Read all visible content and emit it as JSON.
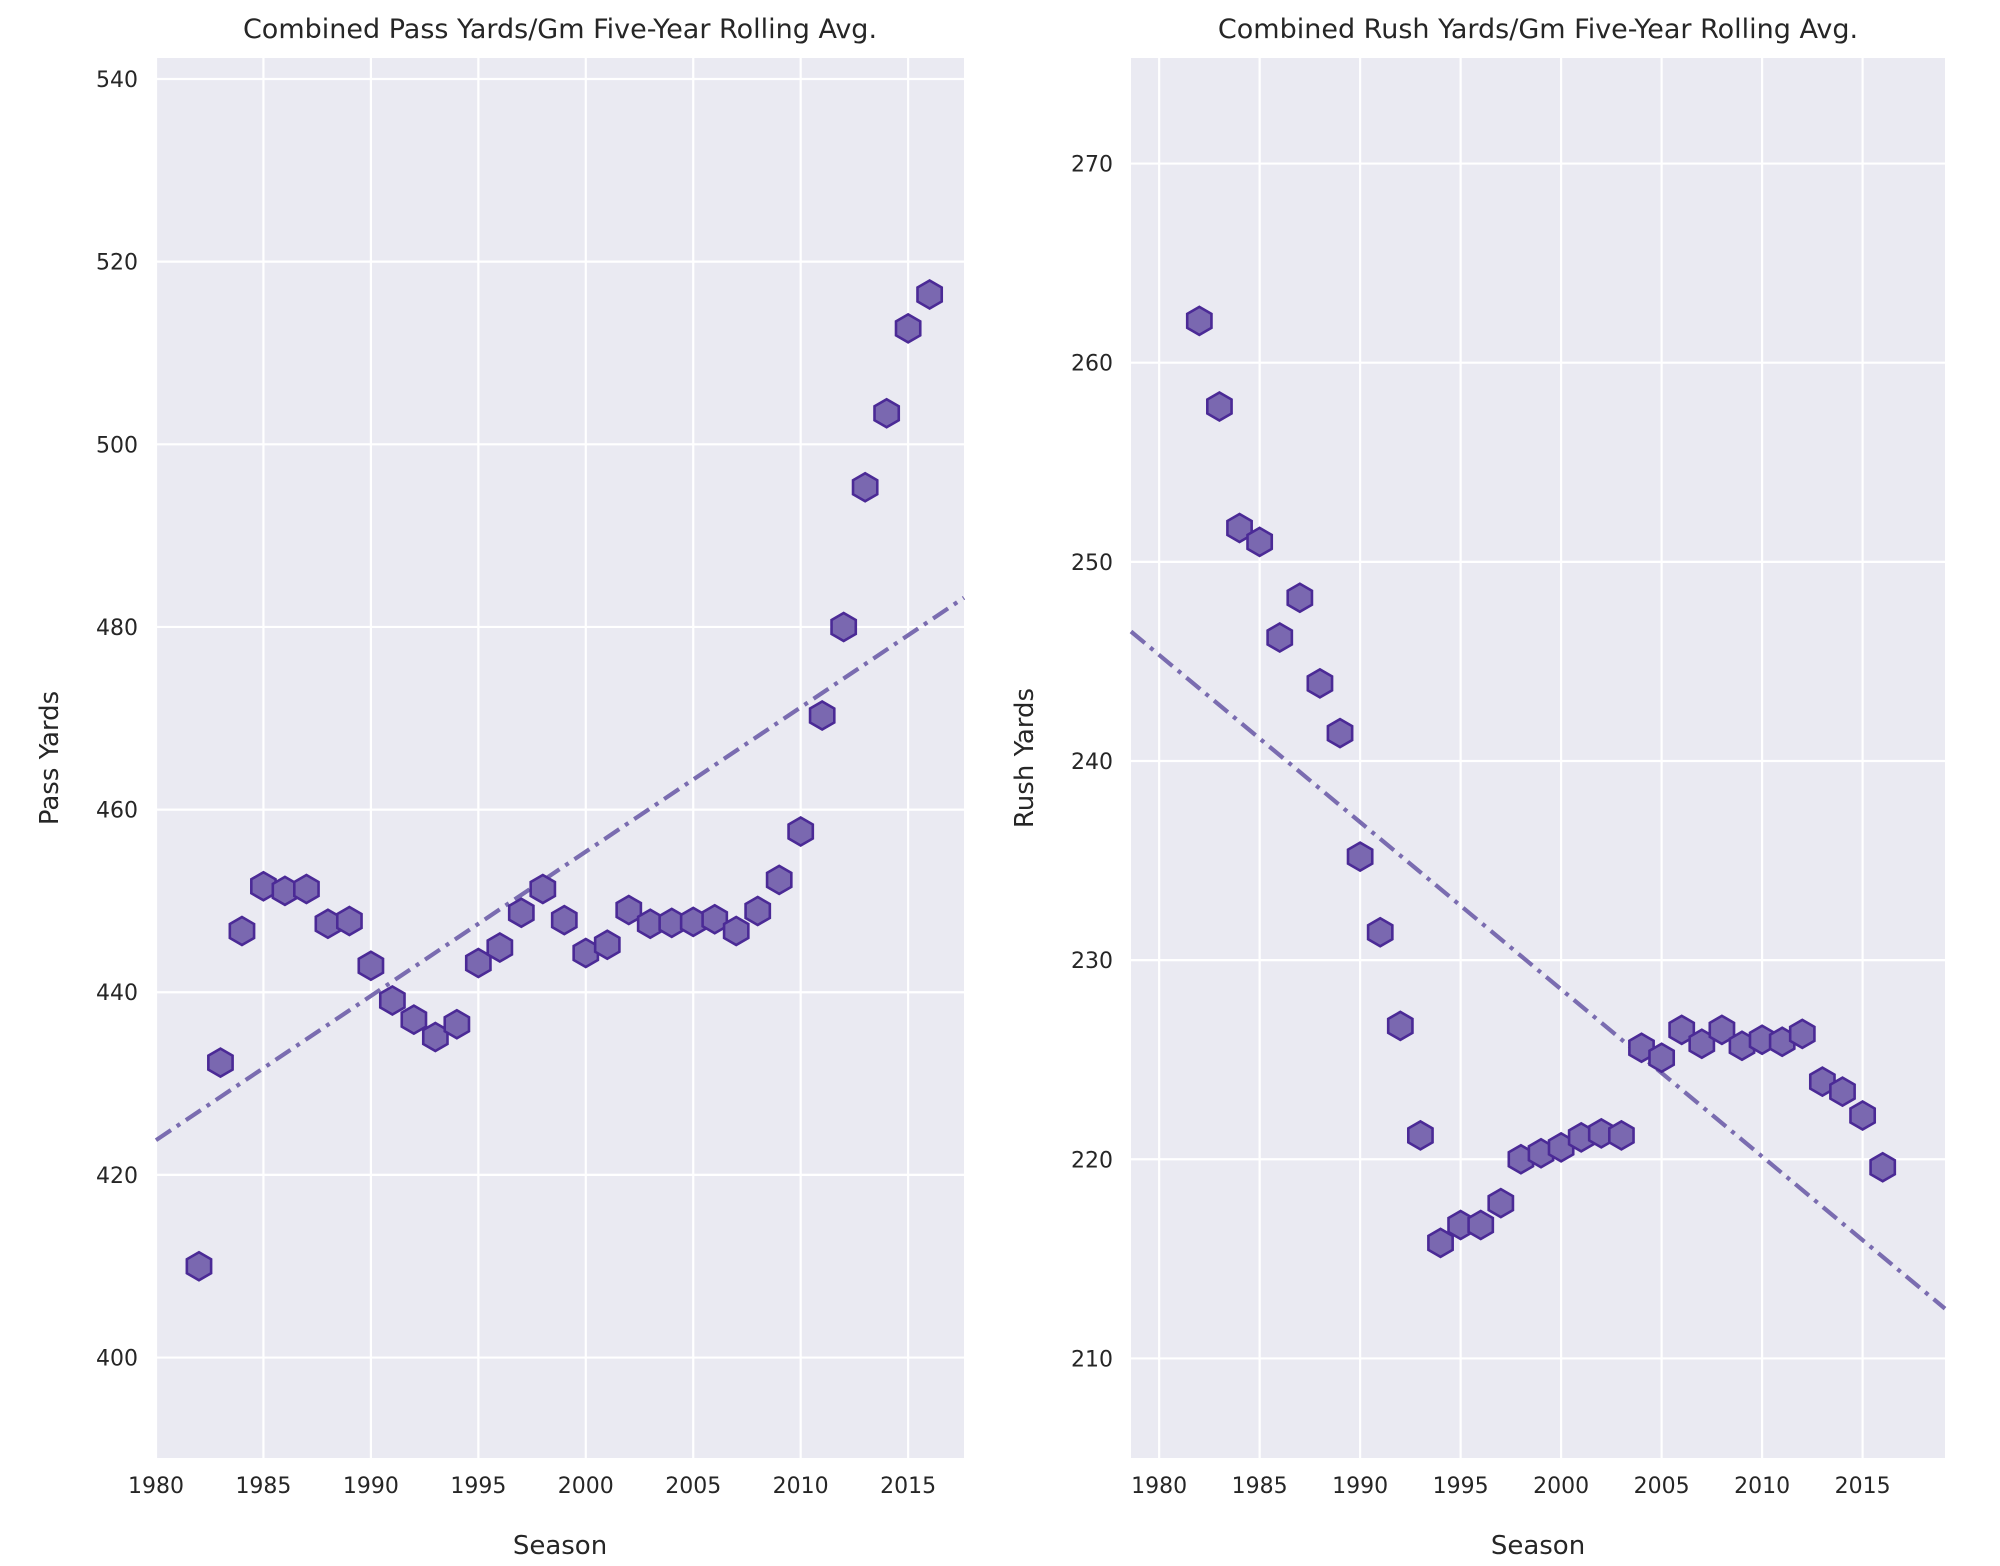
{
  "chart_data": [
    {
      "type": "scatter",
      "title": "Combined Pass Yards/Gm Five-Year Rolling Avg.",
      "xlabel": "Season",
      "ylabel": "Pass Yards",
      "xlim": [
        1980,
        2017.6
      ],
      "ylim": [
        389,
        542.3
      ],
      "xticks": [
        1980,
        1985,
        1990,
        1995,
        2000,
        2005,
        2010,
        2015
      ],
      "yticks": [
        400,
        420,
        440,
        460,
        480,
        500,
        520,
        540
      ],
      "grid": true,
      "marker": "hexagon",
      "marker_fill": "#7a68b0",
      "marker_edge": "#4b2a96",
      "trendline_color": "#7a6cb0",
      "trendline": {
        "x": [
          1980,
          2017.6
        ],
        "y": [
          423.8,
          483.2
        ]
      },
      "points": [
        {
          "x": 1982,
          "y": 410.0
        },
        {
          "x": 1983,
          "y": 432.3
        },
        {
          "x": 1984,
          "y": 446.7
        },
        {
          "x": 1985,
          "y": 451.6
        },
        {
          "x": 1986,
          "y": 451.1
        },
        {
          "x": 1987,
          "y": 451.3
        },
        {
          "x": 1988,
          "y": 447.5
        },
        {
          "x": 1989,
          "y": 447.8
        },
        {
          "x": 1990,
          "y": 442.9
        },
        {
          "x": 1991,
          "y": 439.1
        },
        {
          "x": 1992,
          "y": 437.0
        },
        {
          "x": 1993,
          "y": 435.1
        },
        {
          "x": 1994,
          "y": 436.5
        },
        {
          "x": 1995,
          "y": 443.2
        },
        {
          "x": 1996,
          "y": 444.9
        },
        {
          "x": 1997,
          "y": 448.7
        },
        {
          "x": 1998,
          "y": 451.3
        },
        {
          "x": 1999,
          "y": 447.9
        },
        {
          "x": 2000,
          "y": 444.3
        },
        {
          "x": 2001,
          "y": 445.2
        },
        {
          "x": 2002,
          "y": 449.0
        },
        {
          "x": 2003,
          "y": 447.5
        },
        {
          "x": 2004,
          "y": 447.6
        },
        {
          "x": 2005,
          "y": 447.7
        },
        {
          "x": 2006,
          "y": 448.0
        },
        {
          "x": 2007,
          "y": 446.7
        },
        {
          "x": 2008,
          "y": 448.9
        },
        {
          "x": 2009,
          "y": 452.3
        },
        {
          "x": 2010,
          "y": 457.6
        },
        {
          "x": 2011,
          "y": 470.3
        },
        {
          "x": 2012,
          "y": 480.0
        },
        {
          "x": 2013,
          "y": 495.3
        },
        {
          "x": 2014,
          "y": 503.4
        },
        {
          "x": 2015,
          "y": 512.7
        },
        {
          "x": 2016,
          "y": 516.4
        }
      ]
    },
    {
      "type": "scatter",
      "title": "Combined Rush Yards/Gm Five-Year Rolling Avg.",
      "xlabel": "Season",
      "ylabel": "Rush Yards",
      "xlim": [
        1978.6,
        2019.1
      ],
      "ylim": [
        205,
        275.3
      ],
      "xticks": [
        1980,
        1985,
        1990,
        1995,
        2000,
        2005,
        2010,
        2015
      ],
      "yticks": [
        210,
        220,
        230,
        240,
        250,
        260,
        270
      ],
      "grid": true,
      "marker": "hexagon",
      "marker_fill": "#7a68b0",
      "marker_edge": "#4b2a96",
      "trendline_color": "#7a6cb0",
      "trendline": {
        "x": [
          1978.6,
          2019.1
        ],
        "y": [
          246.5,
          212.5
        ]
      },
      "points": [
        {
          "x": 1982,
          "y": 262.1
        },
        {
          "x": 1983,
          "y": 257.8
        },
        {
          "x": 1984,
          "y": 251.7
        },
        {
          "x": 1985,
          "y": 251.0
        },
        {
          "x": 1986,
          "y": 246.2
        },
        {
          "x": 1987,
          "y": 248.2
        },
        {
          "x": 1988,
          "y": 243.9
        },
        {
          "x": 1989,
          "y": 241.4
        },
        {
          "x": 1990,
          "y": 235.2
        },
        {
          "x": 1991,
          "y": 231.4
        },
        {
          "x": 1992,
          "y": 226.7
        },
        {
          "x": 1993,
          "y": 221.2
        },
        {
          "x": 1994,
          "y": 215.8
        },
        {
          "x": 1995,
          "y": 216.7
        },
        {
          "x": 1996,
          "y": 216.7
        },
        {
          "x": 1997,
          "y": 217.8
        },
        {
          "x": 1998,
          "y": 220.0
        },
        {
          "x": 1999,
          "y": 220.3
        },
        {
          "x": 2000,
          "y": 220.6
        },
        {
          "x": 2001,
          "y": 221.1
        },
        {
          "x": 2002,
          "y": 221.3
        },
        {
          "x": 2003,
          "y": 221.2
        },
        {
          "x": 2004,
          "y": 225.6
        },
        {
          "x": 2005,
          "y": 225.1
        },
        {
          "x": 2006,
          "y": 226.5
        },
        {
          "x": 2007,
          "y": 225.8
        },
        {
          "x": 2008,
          "y": 226.5
        },
        {
          "x": 2009,
          "y": 225.7
        },
        {
          "x": 2010,
          "y": 226.0
        },
        {
          "x": 2011,
          "y": 225.9
        },
        {
          "x": 2012,
          "y": 226.3
        },
        {
          "x": 2013,
          "y": 223.9
        },
        {
          "x": 2014,
          "y": 223.4
        },
        {
          "x": 2015,
          "y": 222.2
        },
        {
          "x": 2016,
          "y": 219.6
        }
      ]
    }
  ]
}
